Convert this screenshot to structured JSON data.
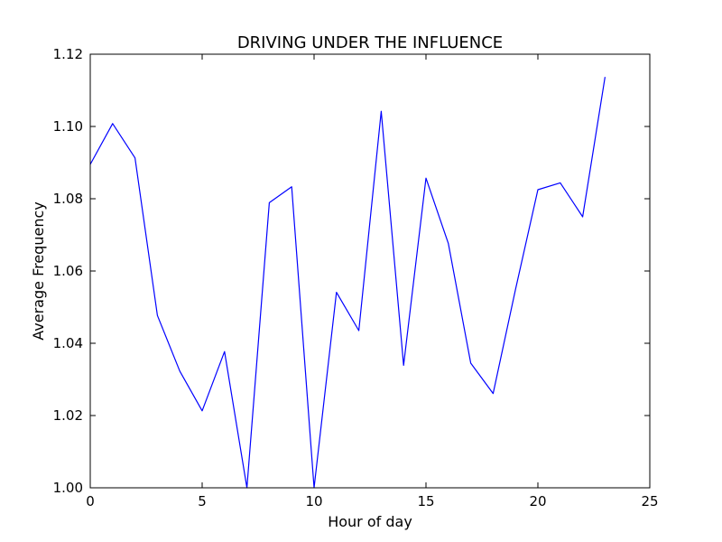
{
  "chart_data": {
    "type": "line",
    "title": "DRIVING UNDER THE INFLUENCE",
    "xlabel": "Hour of day",
    "ylabel": "Average Frequency",
    "xlim": [
      0,
      25
    ],
    "ylim": [
      1.0,
      1.12
    ],
    "xticks": [
      0,
      5,
      10,
      15,
      20,
      25
    ],
    "xtick_labels": [
      "0",
      "5",
      "10",
      "15",
      "20",
      "25"
    ],
    "yticks": [
      1.0,
      1.02,
      1.04,
      1.06,
      1.08,
      1.1,
      1.12
    ],
    "ytick_labels": [
      "1.00",
      "1.02",
      "1.04",
      "1.06",
      "1.08",
      "1.10",
      "1.12"
    ],
    "grid": false,
    "legend": "none",
    "series": [
      {
        "color": "#0000ff",
        "x": [
          0,
          1,
          2,
          3,
          4,
          5,
          6,
          7,
          8,
          9,
          10,
          11,
          12,
          13,
          14,
          15,
          16,
          17,
          18,
          19,
          20,
          21,
          22,
          23
        ],
        "y": [
          1.0895,
          1.1008,
          1.0913,
          1.0477,
          1.0323,
          1.0213,
          1.0377,
          1.0,
          1.0789,
          1.0833,
          1.0,
          1.0541,
          1.0435,
          1.1042,
          1.0339,
          1.0857,
          1.0676,
          1.0345,
          1.0261,
          1.0549,
          1.0825,
          1.0844,
          1.075,
          1.1137
        ]
      }
    ]
  }
}
